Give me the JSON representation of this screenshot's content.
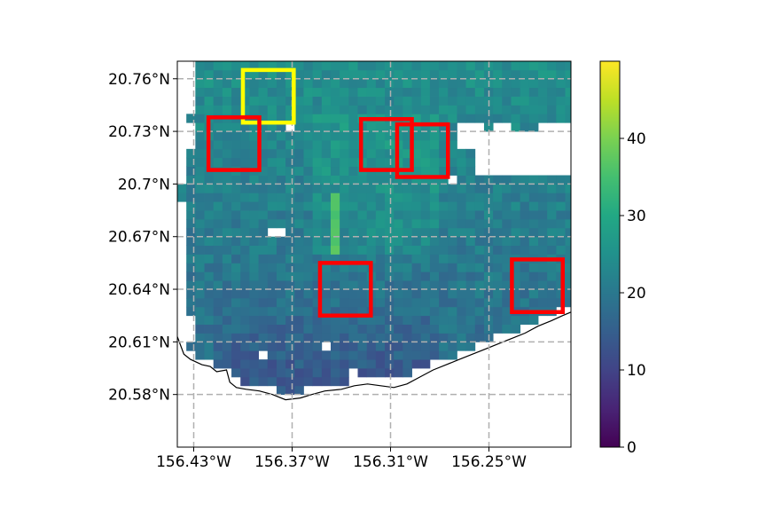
{
  "chart_data": {
    "type": "heatmap",
    "title": "",
    "xlabel": "",
    "ylabel": "",
    "x_ticks": [
      {
        "value": -156.43,
        "label": "156.43°W"
      },
      {
        "value": -156.37,
        "label": "156.37°W"
      },
      {
        "value": -156.31,
        "label": "156.31°W"
      },
      {
        "value": -156.25,
        "label": "156.25°W"
      }
    ],
    "y_ticks": [
      {
        "value": 20.76,
        "label": "20.76°N"
      },
      {
        "value": 20.73,
        "label": "20.73°N"
      },
      {
        "value": 20.7,
        "label": "20.7°N"
      },
      {
        "value": 20.67,
        "label": "20.67°N"
      },
      {
        "value": 20.64,
        "label": "20.64°N"
      },
      {
        "value": 20.61,
        "label": "20.61°N"
      },
      {
        "value": 20.58,
        "label": "20.58°N"
      }
    ],
    "xlim": [
      -156.44,
      -156.2
    ],
    "ylim": [
      20.55,
      20.77
    ],
    "grid": true,
    "colormap": "viridis",
    "colorbar": {
      "range": [
        0,
        50
      ],
      "ticks": [
        {
          "value": 0,
          "label": "0"
        },
        {
          "value": 10,
          "label": "10"
        },
        {
          "value": 20,
          "label": "20"
        },
        {
          "value": 30,
          "label": "30"
        },
        {
          "value": 40,
          "label": "40"
        }
      ]
    },
    "typical_value": 20,
    "highlight_streak": {
      "lon": -156.345,
      "lat_range": [
        20.66,
        20.695
      ],
      "value": 36
    },
    "boxes": [
      {
        "color": "#ffff00",
        "lon": [
          -156.4,
          -156.369
        ],
        "lat": [
          20.735,
          20.765
        ]
      },
      {
        "color": "#ff0000",
        "lon": [
          -156.421,
          -156.39
        ],
        "lat": [
          20.708,
          20.738
        ]
      },
      {
        "color": "#ff0000",
        "lon": [
          -156.328,
          -156.297
        ],
        "lat": [
          20.708,
          20.737
        ]
      },
      {
        "color": "#ff0000",
        "lon": [
          -156.306,
          -156.275
        ],
        "lat": [
          20.704,
          20.734
        ]
      },
      {
        "color": "#ff0000",
        "lon": [
          -156.353,
          -156.322
        ],
        "lat": [
          20.625,
          20.655
        ]
      },
      {
        "color": "#ff0000",
        "lon": [
          -156.236,
          -156.205
        ],
        "lat": [
          20.627,
          20.657
        ]
      }
    ],
    "coastline_color": "#000000"
  }
}
